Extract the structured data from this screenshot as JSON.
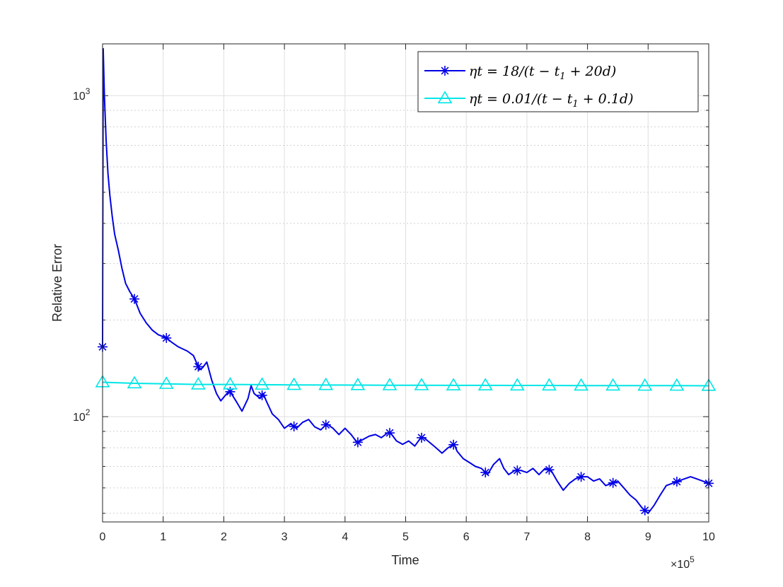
{
  "chart_data": {
    "type": "line",
    "xlabel": "Time",
    "ylabel": "Relative Error",
    "x_multiplier_label": "×10",
    "x_multiplier_exponent": "5",
    "xlim": [
      0,
      10
    ],
    "ylim": [
      47,
      1450
    ],
    "y_scale": "log",
    "x_ticks": [
      "0",
      "1",
      "2",
      "3",
      "4",
      "5",
      "6",
      "7",
      "8",
      "9",
      "10"
    ],
    "y_tick_labels": [
      {
        "base": "10",
        "exp": "2",
        "value": 100
      },
      {
        "base": "10",
        "exp": "3",
        "value": 1000
      }
    ],
    "grid": "on (major and minor)",
    "legend_position": "top-right",
    "series": [
      {
        "name": "ηt = 18/(t − t1 + 20d)",
        "color": "#0000e6",
        "marker": "asterisk",
        "points": [
          [
            0.0,
            165
          ],
          [
            0.01,
            1400
          ],
          [
            0.03,
            1000
          ],
          [
            0.06,
            720
          ],
          [
            0.09,
            570
          ],
          [
            0.12,
            490
          ],
          [
            0.16,
            420
          ],
          [
            0.2,
            370
          ],
          [
            0.26,
            330
          ],
          [
            0.32,
            290
          ],
          [
            0.38,
            260
          ],
          [
            0.45,
            245
          ],
          [
            0.53,
            232
          ],
          [
            0.62,
            210
          ],
          [
            0.72,
            196
          ],
          [
            0.82,
            186
          ],
          [
            0.92,
            180
          ],
          [
            1.05,
            176
          ],
          [
            1.15,
            170
          ],
          [
            1.25,
            165
          ],
          [
            1.4,
            160
          ],
          [
            1.5,
            155
          ],
          [
            1.6,
            140
          ],
          [
            1.65,
            142
          ],
          [
            1.72,
            148
          ],
          [
            1.8,
            130
          ],
          [
            1.88,
            118
          ],
          [
            1.95,
            112
          ],
          [
            2.05,
            118
          ],
          [
            2.1,
            120
          ],
          [
            2.2,
            112
          ],
          [
            2.3,
            104
          ],
          [
            2.4,
            114
          ],
          [
            2.45,
            125
          ],
          [
            2.5,
            118
          ],
          [
            2.6,
            114
          ],
          [
            2.65,
            118
          ],
          [
            2.7,
            112
          ],
          [
            2.8,
            102
          ],
          [
            2.9,
            98
          ],
          [
            3.0,
            92
          ],
          [
            3.1,
            95
          ],
          [
            3.2,
            92
          ],
          [
            3.3,
            96
          ],
          [
            3.4,
            98
          ],
          [
            3.5,
            93
          ],
          [
            3.6,
            91
          ],
          [
            3.7,
            95
          ],
          [
            3.8,
            92
          ],
          [
            3.9,
            88
          ],
          [
            4.0,
            92
          ],
          [
            4.1,
            88
          ],
          [
            4.2,
            83
          ],
          [
            4.3,
            85
          ],
          [
            4.4,
            87
          ],
          [
            4.5,
            88
          ],
          [
            4.6,
            86
          ],
          [
            4.7,
            89
          ],
          [
            4.75,
            89
          ],
          [
            4.85,
            84
          ],
          [
            4.95,
            82
          ],
          [
            5.05,
            84
          ],
          [
            5.15,
            81
          ],
          [
            5.25,
            86
          ],
          [
            5.3,
            86
          ],
          [
            5.4,
            83
          ],
          [
            5.5,
            80
          ],
          [
            5.6,
            77
          ],
          [
            5.7,
            80
          ],
          [
            5.8,
            82
          ],
          [
            5.85,
            78
          ],
          [
            5.95,
            74
          ],
          [
            6.05,
            72
          ],
          [
            6.15,
            70
          ],
          [
            6.25,
            69
          ],
          [
            6.35,
            66
          ],
          [
            6.45,
            71
          ],
          [
            6.55,
            74
          ],
          [
            6.62,
            69
          ],
          [
            6.7,
            66
          ],
          [
            6.8,
            68
          ],
          [
            6.9,
            68
          ],
          [
            7.0,
            67
          ],
          [
            7.1,
            69
          ],
          [
            7.2,
            66
          ],
          [
            7.3,
            69
          ],
          [
            7.4,
            68
          ],
          [
            7.5,
            63
          ],
          [
            7.6,
            59
          ],
          [
            7.7,
            62
          ],
          [
            7.8,
            64
          ],
          [
            7.9,
            65
          ],
          [
            8.0,
            65
          ],
          [
            8.1,
            63
          ],
          [
            8.2,
            64
          ],
          [
            8.3,
            61
          ],
          [
            8.4,
            62
          ],
          [
            8.5,
            63
          ],
          [
            8.6,
            60
          ],
          [
            8.7,
            57
          ],
          [
            8.8,
            55
          ],
          [
            8.9,
            52
          ],
          [
            9.0,
            50
          ],
          [
            9.1,
            53
          ],
          [
            9.2,
            57
          ],
          [
            9.3,
            61
          ],
          [
            9.4,
            62
          ],
          [
            9.5,
            63
          ],
          [
            9.6,
            64
          ],
          [
            9.7,
            65
          ],
          [
            9.8,
            64
          ],
          [
            9.9,
            63
          ],
          [
            10.0,
            62
          ]
        ],
        "marker_x": [
          0,
          0.526,
          1.053,
          1.579,
          2.105,
          2.632,
          3.158,
          3.684,
          4.211,
          4.737,
          5.263,
          5.789,
          6.316,
          6.842,
          7.368,
          7.895,
          8.421,
          8.947,
          9.474,
          10.0
        ]
      },
      {
        "name": "ηt = 0.01/(t − t1 + 0.1d)",
        "color": "#00e6e6",
        "marker": "triangle",
        "points": [
          [
            0.0,
            128
          ],
          [
            0.526,
            127
          ],
          [
            1.053,
            126.5
          ],
          [
            1.579,
            126
          ],
          [
            2.105,
            126
          ],
          [
            2.632,
            125.8
          ],
          [
            3.158,
            125.6
          ],
          [
            3.684,
            125.5
          ],
          [
            4.211,
            125.4
          ],
          [
            4.737,
            125.3
          ],
          [
            5.263,
            125.3
          ],
          [
            5.789,
            125.2
          ],
          [
            6.316,
            125.2
          ],
          [
            6.842,
            125.1
          ],
          [
            7.368,
            125.1
          ],
          [
            7.895,
            125
          ],
          [
            8.421,
            125
          ],
          [
            8.947,
            124.9
          ],
          [
            9.474,
            124.9
          ],
          [
            10.0,
            124.8
          ]
        ],
        "marker_x": [
          0,
          0.526,
          1.053,
          1.579,
          2.105,
          2.632,
          3.158,
          3.684,
          4.211,
          4.737,
          5.263,
          5.789,
          6.316,
          6.842,
          7.368,
          7.895,
          8.421,
          8.947,
          9.474,
          10.0
        ]
      }
    ]
  },
  "legend": {
    "entry1_prefix": "ηt = 18/(t − t",
    "entry1_sub": "1",
    "entry1_suffix": " + 20d)",
    "entry2_prefix": "ηt = 0.01/(t − t",
    "entry2_sub": "1",
    "entry2_suffix": " + 0.1d)"
  }
}
